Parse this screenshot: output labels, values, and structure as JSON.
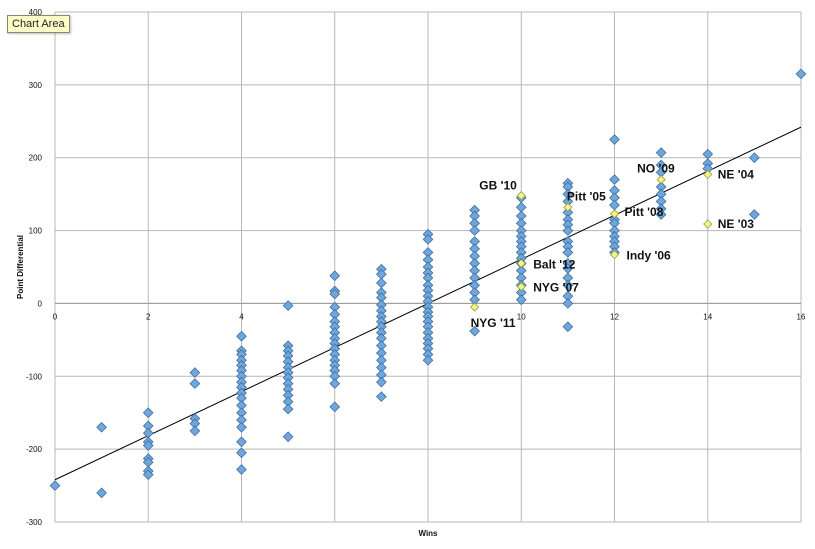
{
  "tooltip": {
    "label": "Chart Area"
  },
  "colors": {
    "point": "#6fa6dc",
    "point_stroke": "#3f6f9f",
    "highlight": "#f4f48a",
    "highlight_stroke": "#9a9a30",
    "grid": "#b8b8b8",
    "trend": "#000000"
  },
  "chart_data": {
    "type": "scatter",
    "title": "",
    "xlabel": "Wins",
    "ylabel": "Point Differential",
    "xlim": [
      0,
      16
    ],
    "ylim": [
      -300,
      400
    ],
    "xticks": [
      0,
      2,
      4,
      6,
      8,
      10,
      12,
      14,
      16
    ],
    "yticks": [
      -300,
      -200,
      -100,
      0,
      100,
      200,
      300,
      400
    ],
    "grid": true,
    "legend": "none",
    "trendline": {
      "x": [
        0,
        16
      ],
      "y": [
        -242,
        242
      ]
    },
    "series": [
      {
        "points": [
          [
            0,
            -250
          ],
          [
            1,
            -170
          ],
          [
            1,
            -260
          ],
          [
            2,
            -150
          ],
          [
            2,
            -168
          ],
          [
            2,
            -178
          ],
          [
            2,
            -190
          ],
          [
            2,
            -195
          ],
          [
            2,
            -213
          ],
          [
            2,
            -218
          ],
          [
            2,
            -230
          ],
          [
            2,
            -235
          ],
          [
            3,
            -95
          ],
          [
            3,
            -110
          ],
          [
            3,
            -158
          ],
          [
            3,
            -165
          ],
          [
            3,
            -175
          ],
          [
            4,
            -45
          ],
          [
            4,
            -65
          ],
          [
            4,
            -70
          ],
          [
            4,
            -78
          ],
          [
            4,
            -85
          ],
          [
            4,
            -92
          ],
          [
            4,
            -100
          ],
          [
            4,
            -108
          ],
          [
            4,
            -115
          ],
          [
            4,
            -123
          ],
          [
            4,
            -130
          ],
          [
            4,
            -140
          ],
          [
            4,
            -150
          ],
          [
            4,
            -160
          ],
          [
            4,
            -170
          ],
          [
            4,
            -190
          ],
          [
            4,
            -205
          ],
          [
            4,
            -228
          ],
          [
            5,
            -3
          ],
          [
            5,
            -58
          ],
          [
            5,
            -65
          ],
          [
            5,
            -72
          ],
          [
            5,
            -80
          ],
          [
            5,
            -88
          ],
          [
            5,
            -95
          ],
          [
            5,
            -102
          ],
          [
            5,
            -110
          ],
          [
            5,
            -118
          ],
          [
            5,
            -126
          ],
          [
            5,
            -135
          ],
          [
            5,
            -145
          ],
          [
            5,
            -183
          ],
          [
            6,
            38
          ],
          [
            6,
            17
          ],
          [
            6,
            13
          ],
          [
            6,
            -5
          ],
          [
            6,
            -15
          ],
          [
            6,
            -25
          ],
          [
            6,
            -32
          ],
          [
            6,
            -40
          ],
          [
            6,
            -48
          ],
          [
            6,
            -55
          ],
          [
            6,
            -62
          ],
          [
            6,
            -70
          ],
          [
            6,
            -78
          ],
          [
            6,
            -85
          ],
          [
            6,
            -92
          ],
          [
            6,
            -100
          ],
          [
            6,
            -110
          ],
          [
            6,
            -142
          ],
          [
            7,
            47
          ],
          [
            7,
            40
          ],
          [
            7,
            28
          ],
          [
            7,
            15
          ],
          [
            7,
            8
          ],
          [
            7,
            -2
          ],
          [
            7,
            -10
          ],
          [
            7,
            -18
          ],
          [
            7,
            -25
          ],
          [
            7,
            -32
          ],
          [
            7,
            -40
          ],
          [
            7,
            -48
          ],
          [
            7,
            -58
          ],
          [
            7,
            -68
          ],
          [
            7,
            -78
          ],
          [
            7,
            -88
          ],
          [
            7,
            -98
          ],
          [
            7,
            -108
          ],
          [
            7,
            -128
          ],
          [
            8,
            95
          ],
          [
            8,
            88
          ],
          [
            8,
            70
          ],
          [
            8,
            60
          ],
          [
            8,
            50
          ],
          [
            8,
            42
          ],
          [
            8,
            35
          ],
          [
            8,
            25
          ],
          [
            8,
            18
          ],
          [
            8,
            10
          ],
          [
            8,
            3
          ],
          [
            8,
            -5
          ],
          [
            8,
            -12
          ],
          [
            8,
            -18
          ],
          [
            8,
            -25
          ],
          [
            8,
            -32
          ],
          [
            8,
            -40
          ],
          [
            8,
            -48
          ],
          [
            8,
            -55
          ],
          [
            8,
            -62
          ],
          [
            8,
            -70
          ],
          [
            8,
            -78
          ],
          [
            9,
            128
          ],
          [
            9,
            120
          ],
          [
            9,
            110
          ],
          [
            9,
            100
          ],
          [
            9,
            85
          ],
          [
            9,
            75
          ],
          [
            9,
            65
          ],
          [
            9,
            55
          ],
          [
            9,
            45
          ],
          [
            9,
            35
          ],
          [
            9,
            25
          ],
          [
            9,
            15
          ],
          [
            9,
            5
          ],
          [
            9,
            -38
          ],
          [
            10,
            145
          ],
          [
            10,
            132
          ],
          [
            10,
            120
          ],
          [
            10,
            110
          ],
          [
            10,
            100
          ],
          [
            10,
            92
          ],
          [
            10,
            85
          ],
          [
            10,
            78
          ],
          [
            10,
            70
          ],
          [
            10,
            62
          ],
          [
            10,
            55
          ],
          [
            10,
            45
          ],
          [
            10,
            35
          ],
          [
            10,
            25
          ],
          [
            10,
            15
          ],
          [
            10,
            5
          ],
          [
            11,
            165
          ],
          [
            11,
            160
          ],
          [
            11,
            150
          ],
          [
            11,
            140
          ],
          [
            11,
            125
          ],
          [
            11,
            115
          ],
          [
            11,
            108
          ],
          [
            11,
            100
          ],
          [
            11,
            85
          ],
          [
            11,
            78
          ],
          [
            11,
            70
          ],
          [
            11,
            55
          ],
          [
            11,
            48
          ],
          [
            11,
            35
          ],
          [
            11,
            25
          ],
          [
            11,
            10
          ],
          [
            11,
            0
          ],
          [
            11,
            -32
          ],
          [
            12,
            225
          ],
          [
            12,
            170
          ],
          [
            12,
            155
          ],
          [
            12,
            145
          ],
          [
            12,
            135
          ],
          [
            12,
            115
          ],
          [
            12,
            110
          ],
          [
            12,
            100
          ],
          [
            12,
            92
          ],
          [
            12,
            85
          ],
          [
            12,
            78
          ],
          [
            12,
            70
          ],
          [
            13,
            207
          ],
          [
            13,
            190
          ],
          [
            13,
            180
          ],
          [
            13,
            160
          ],
          [
            13,
            150
          ],
          [
            13,
            140
          ],
          [
            13,
            130
          ],
          [
            13,
            122
          ],
          [
            14,
            205
          ],
          [
            14,
            192
          ],
          [
            14,
            185
          ],
          [
            15,
            200
          ],
          [
            15,
            122
          ],
          [
            16,
            315
          ]
        ]
      },
      {
        "highlight": true,
        "points": [
          [
            10,
            148
          ],
          [
            11,
            132
          ],
          [
            13,
            170
          ],
          [
            14,
            177
          ],
          [
            12,
            123
          ],
          [
            14,
            109
          ],
          [
            10,
            55
          ],
          [
            12,
            67
          ],
          [
            10,
            23
          ],
          [
            9,
            -5
          ]
        ]
      }
    ],
    "annotations": [
      {
        "label": "GB '10",
        "x": 10,
        "y": 148
      },
      {
        "label": "Pitt '05",
        "x": 11,
        "y": 132
      },
      {
        "label": "NO '09",
        "x": 13,
        "y": 170
      },
      {
        "label": "NE '04",
        "x": 14,
        "y": 177
      },
      {
        "label": "Pitt '08",
        "x": 12,
        "y": 123
      },
      {
        "label": "NE '03",
        "x": 14,
        "y": 109
      },
      {
        "label": "Balt '12",
        "x": 10,
        "y": 55
      },
      {
        "label": "Indy '06",
        "x": 12,
        "y": 67
      },
      {
        "label": "NYG '07",
        "x": 10,
        "y": 23
      },
      {
        "label": "NYG '11",
        "x": 9,
        "y": -5
      }
    ]
  }
}
